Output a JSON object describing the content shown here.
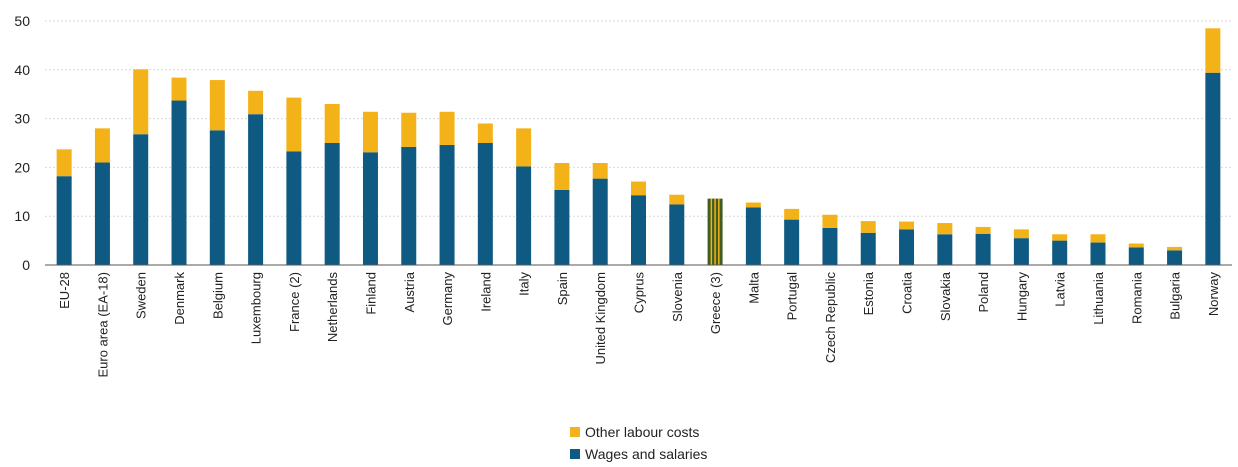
{
  "chart_data": {
    "type": "bar",
    "stacked": true,
    "categories": [
      "EU-28",
      "Euro area (EA-18)",
      "Sweden",
      "Denmark",
      "Belgium",
      "Luxembourg",
      "France (2)",
      "Netherlands",
      "Finland",
      "Austria",
      "Germany",
      "Ireland",
      "Italy",
      "Spain",
      "United Kingdom",
      "Cyprus",
      "Slovenia",
      "Greece (3)",
      "Malta",
      "Portugal",
      "Czech Republic",
      "Estonia",
      "Croatia",
      "Slovakia",
      "Poland",
      "Hungary",
      "Latvia",
      "Lithuania",
      "Romania",
      "Bulgaria",
      "Norway"
    ],
    "series": [
      {
        "name": "Wages and salaries",
        "color": "#0f5a82",
        "values": [
          18.2,
          21.0,
          26.8,
          33.7,
          27.6,
          30.9,
          23.3,
          25.0,
          23.1,
          24.2,
          24.6,
          25.0,
          20.2,
          15.4,
          17.7,
          14.3,
          12.4,
          13.6,
          11.8,
          9.3,
          7.6,
          6.6,
          7.3,
          6.3,
          6.4,
          5.5,
          5.0,
          4.6,
          3.6,
          3.0,
          39.4
        ],
        "highlight": {
          "index": 17,
          "color": "#3e5d21"
        }
      },
      {
        "name": "Other labour costs",
        "color": "#f4b219",
        "values": [
          5.5,
          7.0,
          13.3,
          4.7,
          10.3,
          4.8,
          11.0,
          8.0,
          8.3,
          7.0,
          6.8,
          4.0,
          7.8,
          5.5,
          3.2,
          2.8,
          2.0,
          0.0,
          1.0,
          2.2,
          2.7,
          2.4,
          1.6,
          2.3,
          1.4,
          1.8,
          1.3,
          1.7,
          0.8,
          0.7,
          9.1
        ]
      }
    ],
    "yticks": [
      0,
      10,
      20,
      30,
      40,
      50
    ],
    "ylim": [
      0,
      50
    ],
    "grid": true,
    "legend_position": "bottom"
  },
  "legend": {
    "other": "Other labour costs",
    "wages": "Wages and salaries"
  }
}
